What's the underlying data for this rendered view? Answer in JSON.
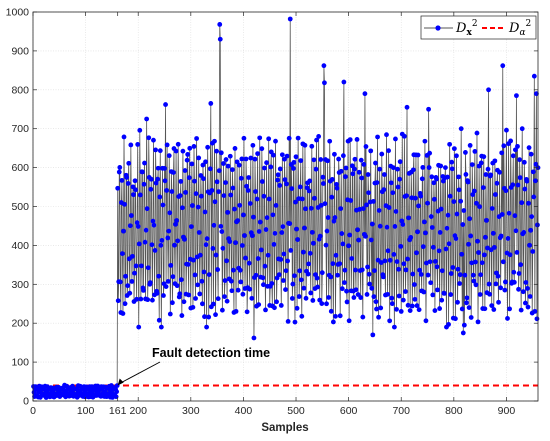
{
  "chart_data": {
    "type": "line",
    "xlabel": "Samples",
    "ylabel": "",
    "xlim": [
      0,
      960
    ],
    "ylim": [
      0,
      1000
    ],
    "xticks": [
      0,
      100,
      161,
      200,
      300,
      400,
      500,
      600,
      700,
      800,
      900
    ],
    "xtick_labels": [
      "0",
      "100",
      "161",
      "200",
      "300",
      "400",
      "500",
      "600",
      "700",
      "800",
      "900"
    ],
    "yticks": [
      0,
      100,
      200,
      300,
      400,
      500,
      600,
      700,
      800,
      900,
      1000
    ],
    "ytick_labels": [
      "0",
      "100",
      "200",
      "300",
      "400",
      "500",
      "600",
      "700",
      "800",
      "900",
      "1000"
    ],
    "grid": true,
    "legend_position": "top-right",
    "series": [
      {
        "name": "D_x^2",
        "style": "line-with-dots",
        "line_color": "#555555",
        "marker_color": "#0000ff",
        "segments": [
          {
            "x_start": 1,
            "x_end": 160,
            "base": 24,
            "amplitude": 14,
            "period": 3.7
          },
          {
            "x_start": 161,
            "x_end": 960,
            "base": 440,
            "amplitude": 215,
            "period": 4.3
          }
        ],
        "peaks": [
          {
            "x": 216,
            "y": 725
          },
          {
            "x": 252,
            "y": 762
          },
          {
            "x": 338,
            "y": 765
          },
          {
            "x": 355,
            "y": 968
          },
          {
            "x": 356,
            "y": 930
          },
          {
            "x": 420,
            "y": 162
          },
          {
            "x": 489,
            "y": 982
          },
          {
            "x": 553,
            "y": 862
          },
          {
            "x": 554,
            "y": 818
          },
          {
            "x": 591,
            "y": 820
          },
          {
            "x": 631,
            "y": 790
          },
          {
            "x": 646,
            "y": 170
          },
          {
            "x": 711,
            "y": 755
          },
          {
            "x": 752,
            "y": 750
          },
          {
            "x": 818,
            "y": 175
          },
          {
            "x": 866,
            "y": 800
          },
          {
            "x": 893,
            "y": 862
          },
          {
            "x": 919,
            "y": 785
          },
          {
            "x": 953,
            "y": 835
          },
          {
            "x": 957,
            "y": 790
          }
        ]
      },
      {
        "name": "D_α^2",
        "style": "dashed",
        "color": "#ff0000",
        "threshold": 40
      }
    ],
    "annotations": [
      {
        "text": "Fault detection time",
        "arrow_to": {
          "x": 161,
          "y": 40
        }
      }
    ]
  },
  "legend": {
    "items": [
      {
        "base": "D",
        "sub": "x",
        "sup": "2"
      },
      {
        "base": "D",
        "sub": "α",
        "sup": "2"
      }
    ]
  }
}
